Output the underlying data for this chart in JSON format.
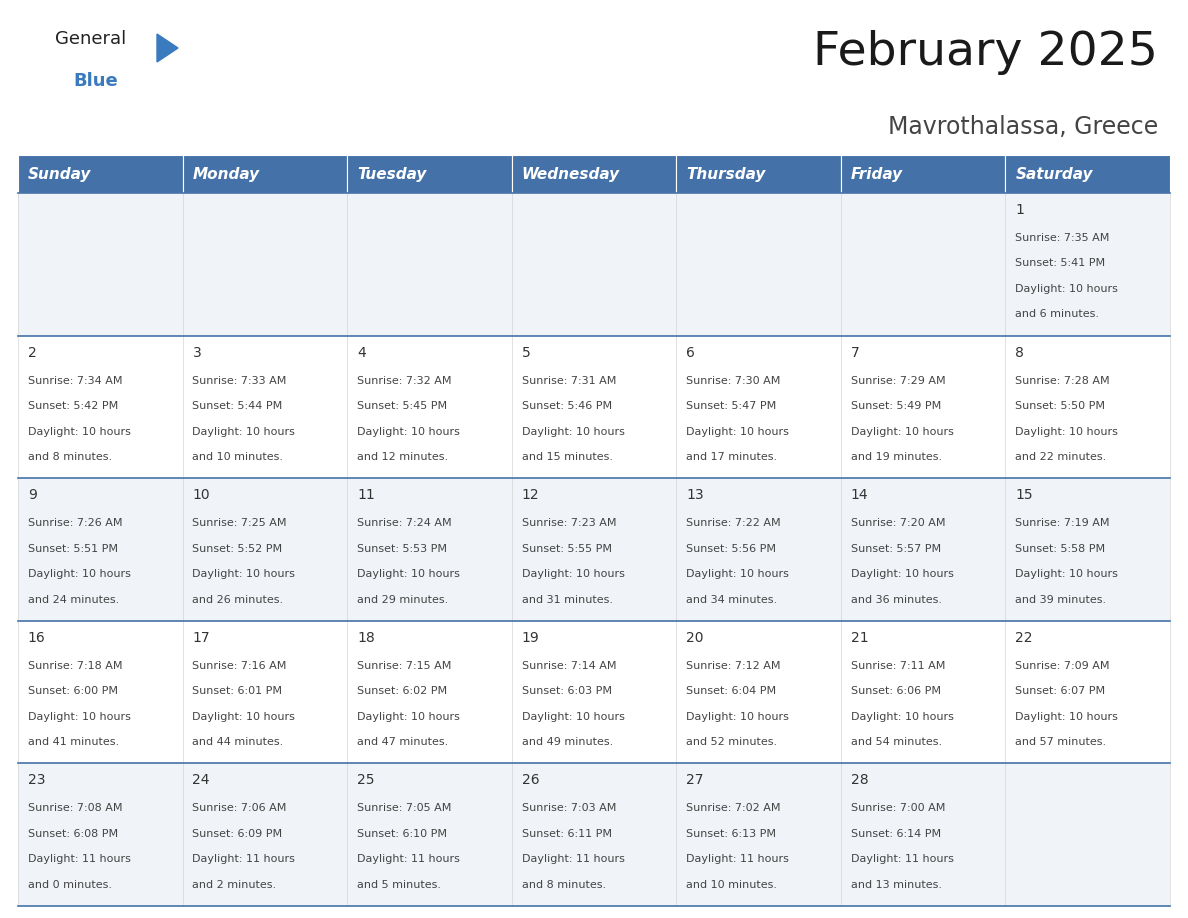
{
  "title": "February 2025",
  "subtitle": "Mavrothalassa, Greece",
  "header_color": "#4472a8",
  "header_text_color": "#ffffff",
  "cell_bg_colors": [
    "#f0f4f8",
    "#ffffff"
  ],
  "day_headers": [
    "Sunday",
    "Monday",
    "Tuesday",
    "Wednesday",
    "Thursday",
    "Friday",
    "Saturday"
  ],
  "logo_text1": "General",
  "logo_text2": "Blue",
  "logo_color1": "#222222",
  "logo_color2": "#3a7abf",
  "days": [
    {
      "day": 1,
      "col": 6,
      "row": 0,
      "sunrise": "7:35 AM",
      "sunset": "5:41 PM",
      "daylight_h": "10 hours",
      "daylight_m": "and 6 minutes."
    },
    {
      "day": 2,
      "col": 0,
      "row": 1,
      "sunrise": "7:34 AM",
      "sunset": "5:42 PM",
      "daylight_h": "10 hours",
      "daylight_m": "and 8 minutes."
    },
    {
      "day": 3,
      "col": 1,
      "row": 1,
      "sunrise": "7:33 AM",
      "sunset": "5:44 PM",
      "daylight_h": "10 hours",
      "daylight_m": "and 10 minutes."
    },
    {
      "day": 4,
      "col": 2,
      "row": 1,
      "sunrise": "7:32 AM",
      "sunset": "5:45 PM",
      "daylight_h": "10 hours",
      "daylight_m": "and 12 minutes."
    },
    {
      "day": 5,
      "col": 3,
      "row": 1,
      "sunrise": "7:31 AM",
      "sunset": "5:46 PM",
      "daylight_h": "10 hours",
      "daylight_m": "and 15 minutes."
    },
    {
      "day": 6,
      "col": 4,
      "row": 1,
      "sunrise": "7:30 AM",
      "sunset": "5:47 PM",
      "daylight_h": "10 hours",
      "daylight_m": "and 17 minutes."
    },
    {
      "day": 7,
      "col": 5,
      "row": 1,
      "sunrise": "7:29 AM",
      "sunset": "5:49 PM",
      "daylight_h": "10 hours",
      "daylight_m": "and 19 minutes."
    },
    {
      "day": 8,
      "col": 6,
      "row": 1,
      "sunrise": "7:28 AM",
      "sunset": "5:50 PM",
      "daylight_h": "10 hours",
      "daylight_m": "and 22 minutes."
    },
    {
      "day": 9,
      "col": 0,
      "row": 2,
      "sunrise": "7:26 AM",
      "sunset": "5:51 PM",
      "daylight_h": "10 hours",
      "daylight_m": "and 24 minutes."
    },
    {
      "day": 10,
      "col": 1,
      "row": 2,
      "sunrise": "7:25 AM",
      "sunset": "5:52 PM",
      "daylight_h": "10 hours",
      "daylight_m": "and 26 minutes."
    },
    {
      "day": 11,
      "col": 2,
      "row": 2,
      "sunrise": "7:24 AM",
      "sunset": "5:53 PM",
      "daylight_h": "10 hours",
      "daylight_m": "and 29 minutes."
    },
    {
      "day": 12,
      "col": 3,
      "row": 2,
      "sunrise": "7:23 AM",
      "sunset": "5:55 PM",
      "daylight_h": "10 hours",
      "daylight_m": "and 31 minutes."
    },
    {
      "day": 13,
      "col": 4,
      "row": 2,
      "sunrise": "7:22 AM",
      "sunset": "5:56 PM",
      "daylight_h": "10 hours",
      "daylight_m": "and 34 minutes."
    },
    {
      "day": 14,
      "col": 5,
      "row": 2,
      "sunrise": "7:20 AM",
      "sunset": "5:57 PM",
      "daylight_h": "10 hours",
      "daylight_m": "and 36 minutes."
    },
    {
      "day": 15,
      "col": 6,
      "row": 2,
      "sunrise": "7:19 AM",
      "sunset": "5:58 PM",
      "daylight_h": "10 hours",
      "daylight_m": "and 39 minutes."
    },
    {
      "day": 16,
      "col": 0,
      "row": 3,
      "sunrise": "7:18 AM",
      "sunset": "6:00 PM",
      "daylight_h": "10 hours",
      "daylight_m": "and 41 minutes."
    },
    {
      "day": 17,
      "col": 1,
      "row": 3,
      "sunrise": "7:16 AM",
      "sunset": "6:01 PM",
      "daylight_h": "10 hours",
      "daylight_m": "and 44 minutes."
    },
    {
      "day": 18,
      "col": 2,
      "row": 3,
      "sunrise": "7:15 AM",
      "sunset": "6:02 PM",
      "daylight_h": "10 hours",
      "daylight_m": "and 47 minutes."
    },
    {
      "day": 19,
      "col": 3,
      "row": 3,
      "sunrise": "7:14 AM",
      "sunset": "6:03 PM",
      "daylight_h": "10 hours",
      "daylight_m": "and 49 minutes."
    },
    {
      "day": 20,
      "col": 4,
      "row": 3,
      "sunrise": "7:12 AM",
      "sunset": "6:04 PM",
      "daylight_h": "10 hours",
      "daylight_m": "and 52 minutes."
    },
    {
      "day": 21,
      "col": 5,
      "row": 3,
      "sunrise": "7:11 AM",
      "sunset": "6:06 PM",
      "daylight_h": "10 hours",
      "daylight_m": "and 54 minutes."
    },
    {
      "day": 22,
      "col": 6,
      "row": 3,
      "sunrise": "7:09 AM",
      "sunset": "6:07 PM",
      "daylight_h": "10 hours",
      "daylight_m": "and 57 minutes."
    },
    {
      "day": 23,
      "col": 0,
      "row": 4,
      "sunrise": "7:08 AM",
      "sunset": "6:08 PM",
      "daylight_h": "11 hours",
      "daylight_m": "and 0 minutes."
    },
    {
      "day": 24,
      "col": 1,
      "row": 4,
      "sunrise": "7:06 AM",
      "sunset": "6:09 PM",
      "daylight_h": "11 hours",
      "daylight_m": "and 2 minutes."
    },
    {
      "day": 25,
      "col": 2,
      "row": 4,
      "sunrise": "7:05 AM",
      "sunset": "6:10 PM",
      "daylight_h": "11 hours",
      "daylight_m": "and 5 minutes."
    },
    {
      "day": 26,
      "col": 3,
      "row": 4,
      "sunrise": "7:03 AM",
      "sunset": "6:11 PM",
      "daylight_h": "11 hours",
      "daylight_m": "and 8 minutes."
    },
    {
      "day": 27,
      "col": 4,
      "row": 4,
      "sunrise": "7:02 AM",
      "sunset": "6:13 PM",
      "daylight_h": "11 hours",
      "daylight_m": "and 10 minutes."
    },
    {
      "day": 28,
      "col": 5,
      "row": 4,
      "sunrise": "7:00 AM",
      "sunset": "6:14 PM",
      "daylight_h": "11 hours",
      "daylight_m": "and 13 minutes."
    }
  ],
  "num_rows": 5,
  "num_cols": 7,
  "title_fontsize": 34,
  "subtitle_fontsize": 17,
  "day_number_fontsize": 10,
  "cell_text_fontsize": 8,
  "header_fontsize": 11
}
